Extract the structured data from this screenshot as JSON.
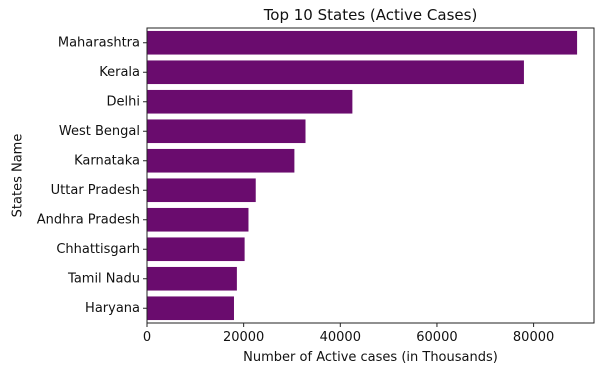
{
  "chart_data": {
    "type": "bar",
    "orientation": "horizontal",
    "title": "Top 10 States (Active Cases)",
    "xlabel": "Number of Active cases (in Thousands)",
    "ylabel": "States Name",
    "categories": [
      "Maharashtra",
      "Kerala",
      "Delhi",
      "West Bengal",
      "Karnataka",
      "Uttar Pradesh",
      "Andhra Pradesh",
      "Chhattisgarh",
      "Tamil Nadu",
      "Haryana"
    ],
    "values": [
      89000,
      78000,
      42500,
      32800,
      30500,
      22500,
      21000,
      20200,
      18600,
      18000
    ],
    "xlim": [
      0,
      92500
    ],
    "xticks": [
      0,
      20000,
      40000,
      60000,
      80000
    ],
    "bar_color": "#6a0c6e",
    "grid": false,
    "legend": "none"
  }
}
